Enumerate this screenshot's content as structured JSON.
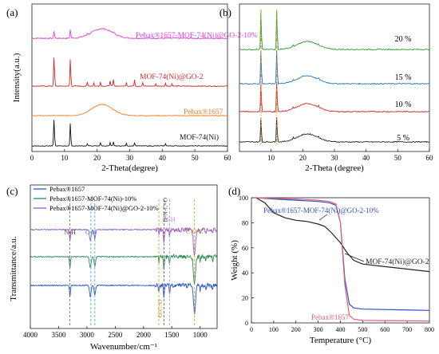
{
  "chart_data": [
    {
      "panel_label": "(a)",
      "type": "line",
      "xlabel": "2-Theta(degree)",
      "ylabel": "Intensity(a.u.)",
      "xlim": [
        0,
        60
      ],
      "x_ticks": [
        "0",
        "10",
        "20",
        "30",
        "40",
        "50",
        "60"
      ],
      "series": [
        {
          "name": "Pebax®1657-MOF-74(Ni)@GO-2-10%",
          "color": "#e040e0"
        },
        {
          "name": "MOF-74(Ni)@GO-2",
          "color": "#d62728"
        },
        {
          "name": "Pebax®1657",
          "color": "#f07820"
        },
        {
          "name": "MOF-74(Ni)",
          "color": "#111111"
        }
      ],
      "peaks_deg": [
        6.8,
        11.8
      ]
    },
    {
      "panel_label": "(b)",
      "type": "line",
      "xlabel": "2-Theta (degree)",
      "xlim": [
        0,
        60
      ],
      "x_ticks": [
        "10",
        "20",
        "30",
        "40",
        "50",
        "60"
      ],
      "series": [
        {
          "name": "20 %",
          "color": "#2ca02c"
        },
        {
          "name": "15 %",
          "color": "#1f77b4"
        },
        {
          "name": "10 %",
          "color": "#d62728"
        },
        {
          "name": "5 %",
          "color": "#222222"
        }
      ],
      "peaks_deg": [
        6.8,
        11.8
      ]
    },
    {
      "panel_label": "(c)",
      "type": "line",
      "xlabel": "Wavenumber/cm⁻¹",
      "ylabel": "Transmittance/a.u.",
      "xlim": [
        4000,
        700
      ],
      "x_ticks": [
        "4000",
        "3500",
        "3000",
        "2500",
        "2000",
        "1500",
        "1000"
      ],
      "series": [
        {
          "name": "Pebax®1657",
          "color": "#2a57c8"
        },
        {
          "name": "Pebax®1657-MOF-74(Ni)-10%",
          "color": "#2e8b57"
        },
        {
          "name": "Pebax®1657-MOF-74(Ni)@GO-2-10%",
          "color": "#9b59c6"
        }
      ],
      "annotations": [
        "N-H",
        "C-H",
        "H-N-C=O",
        "N-H",
        "C-O-C",
        "O-C=O"
      ]
    },
    {
      "panel_label": "(d)",
      "type": "line",
      "xlabel": "Temperature (°C)",
      "ylabel": "Weight (%)",
      "xlim": [
        0,
        800
      ],
      "ylim": [
        0,
        100
      ],
      "x_ticks": [
        "0",
        "100",
        "200",
        "300",
        "400",
        "500",
        "600",
        "700",
        "800"
      ],
      "y_ticks": [
        "0",
        "20",
        "40",
        "60",
        "80",
        "100"
      ],
      "series": [
        {
          "name": "Pebax®1657-MOF-74(Ni)@GO-2-10%",
          "color": "#3050c8",
          "x": [
            20,
            100,
            200,
            300,
            350,
            380,
            400,
            420,
            440,
            460,
            500,
            800
          ],
          "y": [
            100,
            99,
            98,
            97,
            96,
            94,
            80,
            35,
            15,
            12,
            11,
            10
          ]
        },
        {
          "name": "MOF-74(Ni)@GO-2",
          "color": "#222222",
          "x": [
            20,
            60,
            100,
            150,
            200,
            250,
            300,
            330,
            360,
            400,
            430,
            460,
            500,
            600,
            700,
            800
          ],
          "y": [
            100,
            96,
            88,
            84,
            82,
            81,
            79,
            77,
            72,
            64,
            56,
            50,
            47,
            45,
            43,
            41
          ]
        },
        {
          "name": "Pebax®1657",
          "color": "#e0607a",
          "x": [
            20,
            100,
            200,
            300,
            350,
            380,
            400,
            420,
            440,
            460,
            500,
            800
          ],
          "y": [
            100,
            99.5,
            99,
            98,
            97,
            95,
            80,
            30,
            6,
            3,
            2,
            1.5
          ]
        }
      ]
    }
  ]
}
